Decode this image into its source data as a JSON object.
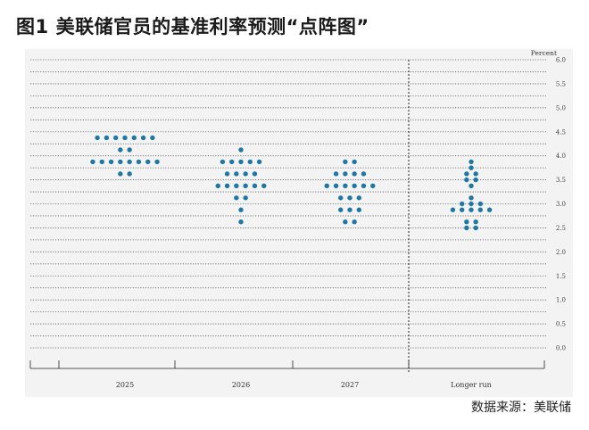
{
  "header": {
    "fig_label": "图1",
    "title": "美联储官员的基准利率预测“点阵图”"
  },
  "source": "数据来源：美联储",
  "colors": {
    "dot": "#1f77a4",
    "grid": "#666666",
    "divider": "#222222",
    "background": "#f3f3f3"
  },
  "chart_data": {
    "type": "scatter",
    "title": "",
    "ylabel": "Percent",
    "xlabel": "",
    "ylim": [
      0.0,
      6.0
    ],
    "y_step": 0.25,
    "y_ticks": [
      "0.0",
      "0.5",
      "1.0",
      "1.5",
      "2.0",
      "2.5",
      "3.0",
      "3.5",
      "4.0",
      "4.5",
      "5.0",
      "5.5",
      "6.0"
    ],
    "grid": true,
    "categories": [
      "2025",
      "2026",
      "2027",
      "Longer run"
    ],
    "dots": [
      {
        "category": "2025",
        "rates": [
          {
            "y": 4.375,
            "n": 7
          },
          {
            "y": 4.125,
            "n": 2
          },
          {
            "y": 3.875,
            "n": 8
          },
          {
            "y": 3.625,
            "n": 2
          }
        ]
      },
      {
        "category": "2026",
        "rates": [
          {
            "y": 4.125,
            "n": 1
          },
          {
            "y": 3.875,
            "n": 5
          },
          {
            "y": 3.625,
            "n": 4
          },
          {
            "y": 3.375,
            "n": 6
          },
          {
            "y": 3.125,
            "n": 2
          },
          {
            "y": 2.875,
            "n": 1
          },
          {
            "y": 2.625,
            "n": 1
          }
        ]
      },
      {
        "category": "2027",
        "rates": [
          {
            "y": 3.875,
            "n": 2
          },
          {
            "y": 3.625,
            "n": 4
          },
          {
            "y": 3.375,
            "n": 6
          },
          {
            "y": 3.125,
            "n": 3
          },
          {
            "y": 2.875,
            "n": 3
          },
          {
            "y": 2.625,
            "n": 2
          }
        ]
      },
      {
        "category": "Longer run",
        "rates": [
          {
            "y": 3.875,
            "n": 1
          },
          {
            "y": 3.75,
            "n": 1
          },
          {
            "y": 3.625,
            "n": 2
          },
          {
            "y": 3.5,
            "n": 2
          },
          {
            "y": 3.375,
            "n": 1
          },
          {
            "y": 3.125,
            "n": 1
          },
          {
            "y": 3.0,
            "n": 3
          },
          {
            "y": 2.875,
            "n": 5
          },
          {
            "y": 2.625,
            "n": 2
          },
          {
            "y": 2.5,
            "n": 2
          }
        ]
      }
    ]
  }
}
